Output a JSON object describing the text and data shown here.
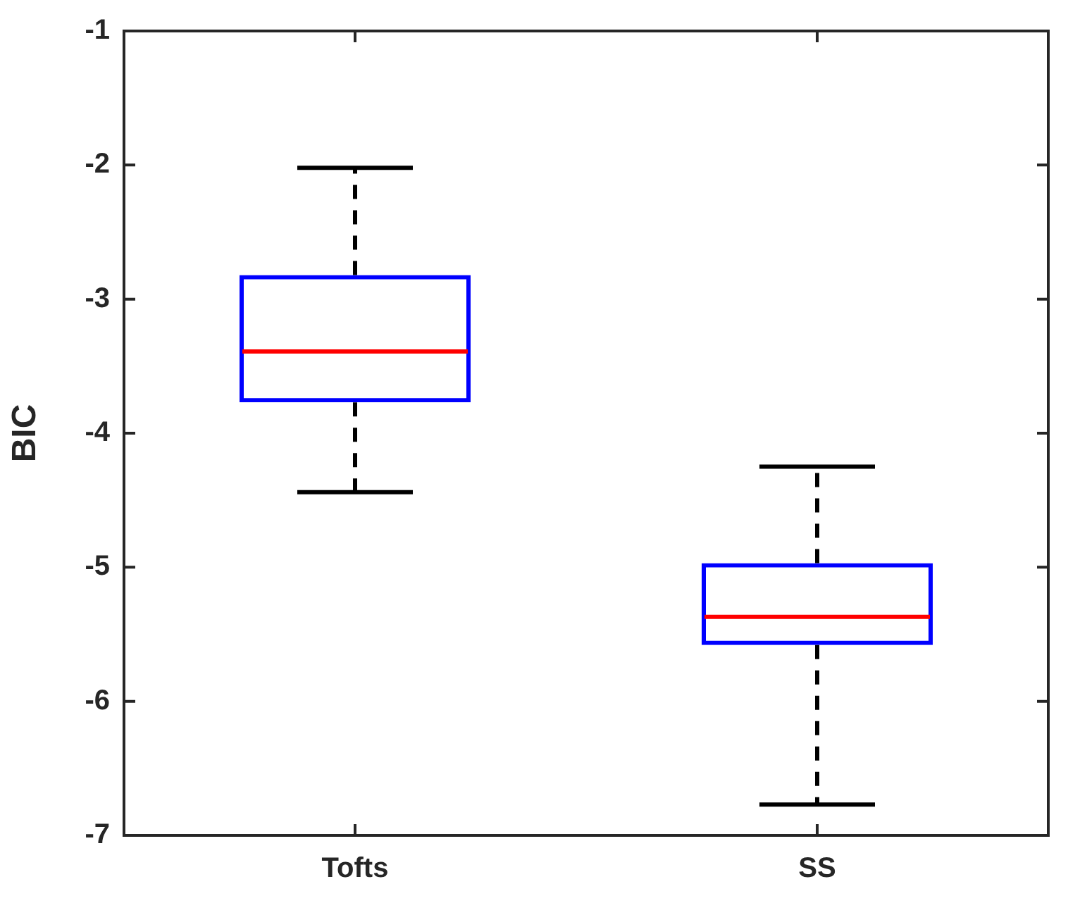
{
  "chart_data": {
    "type": "box",
    "ylabel": "BIC",
    "categories": [
      "Tofts",
      "SS"
    ],
    "series": [
      {
        "color": "#0000ff",
        "boxes": [
          {
            "low": -4.44,
            "q1": -3.77,
            "median": -3.39,
            "q3": -2.82,
            "high": -2.02
          },
          {
            "low": -6.77,
            "q1": -5.58,
            "median": -5.37,
            "q3": -4.97,
            "high": -4.25
          }
        ]
      }
    ],
    "ylim": [
      -7,
      -1
    ],
    "yticks": [
      -7,
      -6,
      -5,
      -4,
      -3,
      -2,
      -1
    ],
    "grid": false,
    "legend": false
  }
}
